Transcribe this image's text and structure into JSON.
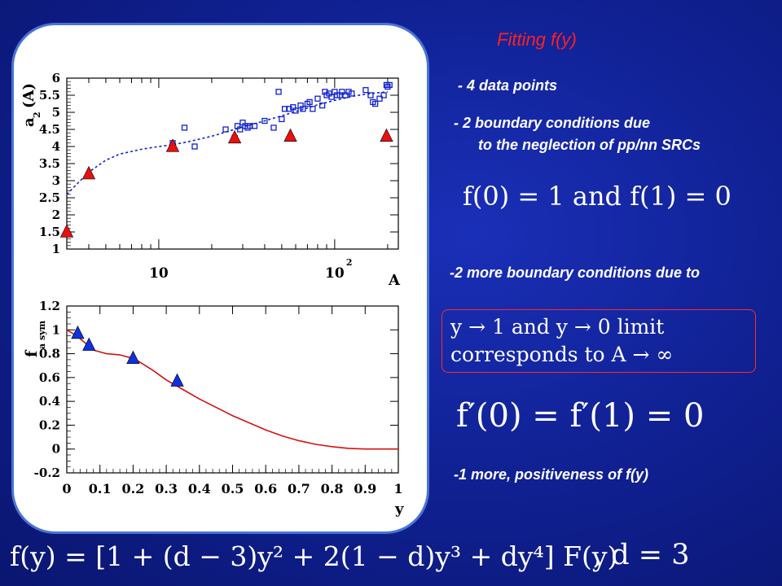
{
  "slide": {
    "title": "Fitting f(y)",
    "note1": "- 4  data points",
    "note2": "- 2  boundary conditions due",
    "note2b": "to the neglection  of pp/nn SRCs",
    "formula1": "f(0) = 1 and f(1) = 0",
    "note3": "-2 more  boundary conditions due to",
    "box_line1": "y → 1 and y → 0 limit",
    "box_line2": "corresponds to A → ∞",
    "formula2": "f′(0) = f′(1) = 0",
    "note4": "-1  more,  positiveness of f(y)",
    "bottom_formula": "f(y) = [1 + (d − 3)y² + 2(1 − d)y³ + dy⁴] F(y)",
    "bottom_d": ", d = 3"
  },
  "chart_data": [
    {
      "type": "scatter",
      "xscale": "log",
      "xlim": [
        3,
        230
      ],
      "ylim": [
        1,
        6
      ],
      "ylabel": "a2(A)",
      "xlabel": "A",
      "ytick_labels": [
        "1",
        "1.5",
        "2",
        "2.5",
        "3",
        "3.5",
        "4",
        "4.5",
        "5",
        "5.5",
        "6"
      ],
      "xtick_labels": [
        "10",
        "10²"
      ],
      "series": [
        {
          "marker": "triangle",
          "color": "#e81010",
          "x": [
            3,
            4,
            12,
            27,
            56,
            197
          ],
          "y": [
            1.5,
            3.2,
            4.0,
            4.25,
            4.3,
            4.3
          ]
        },
        {
          "marker": "square-open",
          "color": "#1020d0",
          "x": [
            12,
            14,
            16,
            24,
            27,
            28,
            29,
            30,
            31,
            32,
            33,
            35,
            40,
            45,
            48,
            50,
            52,
            55,
            58,
            60,
            64,
            66,
            70,
            72,
            75,
            80,
            85,
            88,
            90,
            93,
            96,
            100,
            103,
            107,
            110,
            115,
            120,
            125,
            150,
            160,
            165,
            170,
            180,
            190,
            197,
            200,
            205
          ],
          "y": [
            4.1,
            4.55,
            4.0,
            4.5,
            4.25,
            4.6,
            4.5,
            4.7,
            4.6,
            4.55,
            4.6,
            4.6,
            4.75,
            4.55,
            5.6,
            4.8,
            5.1,
            5.1,
            5.15,
            5.05,
            5.2,
            5.1,
            5.25,
            5.3,
            5.1,
            5.4,
            5.2,
            5.6,
            5.5,
            5.55,
            5.45,
            5.6,
            5.5,
            5.5,
            5.6,
            5.5,
            5.6,
            5.55,
            5.65,
            5.5,
            5.3,
            5.25,
            5.4,
            5.5,
            5.8,
            5.75,
            5.8
          ]
        },
        {
          "marker": "dashed-line",
          "color": "#1020d0",
          "x": [
            3,
            3.5,
            4,
            5,
            6,
            8,
            10,
            12,
            15,
            20,
            25,
            30,
            40,
            50,
            60,
            80,
            100,
            130,
            160,
            200
          ],
          "y": [
            2.6,
            2.95,
            3.25,
            3.6,
            3.78,
            3.92,
            4.0,
            4.05,
            4.15,
            4.3,
            4.45,
            4.57,
            4.75,
            4.9,
            5.02,
            5.22,
            5.35,
            5.48,
            5.55,
            5.6
          ]
        }
      ]
    },
    {
      "type": "line",
      "xlim": [
        0,
        1
      ],
      "ylim": [
        -0.2,
        1.2
      ],
      "ylabel": "f_asym",
      "xlabel": "y",
      "ytick_labels": [
        "-0.2",
        "0",
        "0.2",
        "0.4",
        "0.6",
        "0.8",
        "1",
        "1.2"
      ],
      "xtick_labels": [
        "0",
        "0.1",
        "0.2",
        "0.3",
        "0.4",
        "0.5",
        "0.6",
        "0.7",
        "0.8",
        "0.9",
        "1"
      ],
      "series": [
        {
          "marker": "line",
          "color": "#d81010",
          "x": [
            0,
            0.03,
            0.06,
            0.08,
            0.12,
            0.16,
            0.2,
            0.22,
            0.26,
            0.3,
            0.35,
            0.4,
            0.45,
            0.5,
            0.55,
            0.6,
            0.65,
            0.7,
            0.75,
            0.8,
            0.85,
            0.9,
            0.95,
            1.0
          ],
          "y": [
            1.0,
            0.95,
            0.88,
            0.83,
            0.8,
            0.79,
            0.76,
            0.73,
            0.66,
            0.58,
            0.5,
            0.42,
            0.35,
            0.28,
            0.22,
            0.16,
            0.11,
            0.07,
            0.04,
            0.02,
            0.005,
            0.0,
            0.0,
            0.0
          ]
        },
        {
          "marker": "triangle",
          "color": "#1030e0",
          "x": [
            0.033,
            0.067,
            0.2,
            0.333
          ],
          "y": [
            0.97,
            0.87,
            0.76,
            0.57
          ]
        }
      ]
    }
  ]
}
